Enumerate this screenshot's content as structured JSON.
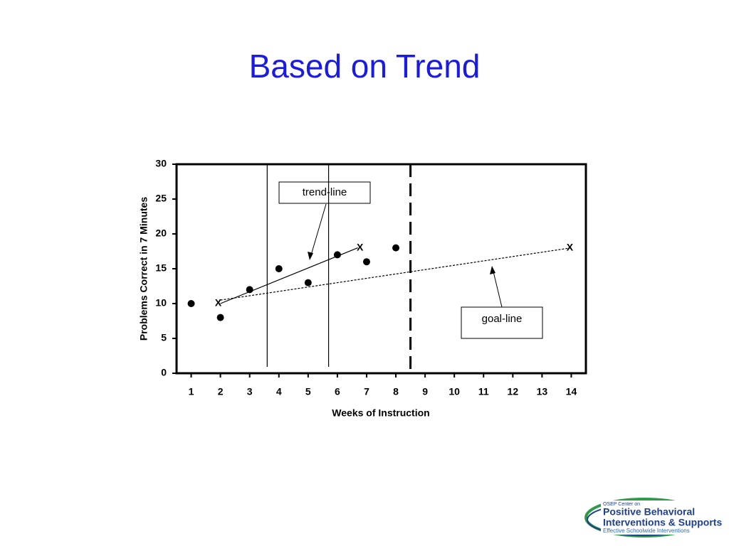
{
  "chart_data": {
    "type": "scatter",
    "title": "Based on Trend",
    "x_label": "Weeks of Instruction",
    "y_label": "Problems Correct in 7 Minutes",
    "xlim": [
      0.5,
      14.5
    ],
    "xticks": [
      1,
      2,
      3,
      4,
      5,
      6,
      7,
      8,
      9,
      10,
      11,
      12,
      13,
      14
    ],
    "ylim": [
      0,
      30
    ],
    "yticks": [
      0,
      5,
      10,
      15,
      20,
      25,
      30
    ],
    "points": {
      "x": [
        1,
        2,
        3,
        4,
        5,
        6,
        7,
        8
      ],
      "y": [
        10,
        8,
        12,
        15,
        13,
        17,
        16,
        18
      ],
      "color": "#000000"
    },
    "marker_label": "X",
    "trend_line": {
      "label": "trend-line",
      "x": [
        2,
        6.7
      ],
      "y": [
        10,
        18
      ]
    },
    "goal_line": {
      "label": "goal-line",
      "x": [
        2,
        14
      ],
      "y": [
        10.5,
        18
      ]
    },
    "phase_lines": {
      "solid": [
        3.6,
        5.7
      ],
      "dashed": [
        8.5
      ]
    }
  },
  "logo": {
    "line1": "OSEP Center on",
    "line2": "Positive Behavioral",
    "line3": "Interventions & Supports",
    "line4": "Effective Schoolwide Interventions"
  }
}
